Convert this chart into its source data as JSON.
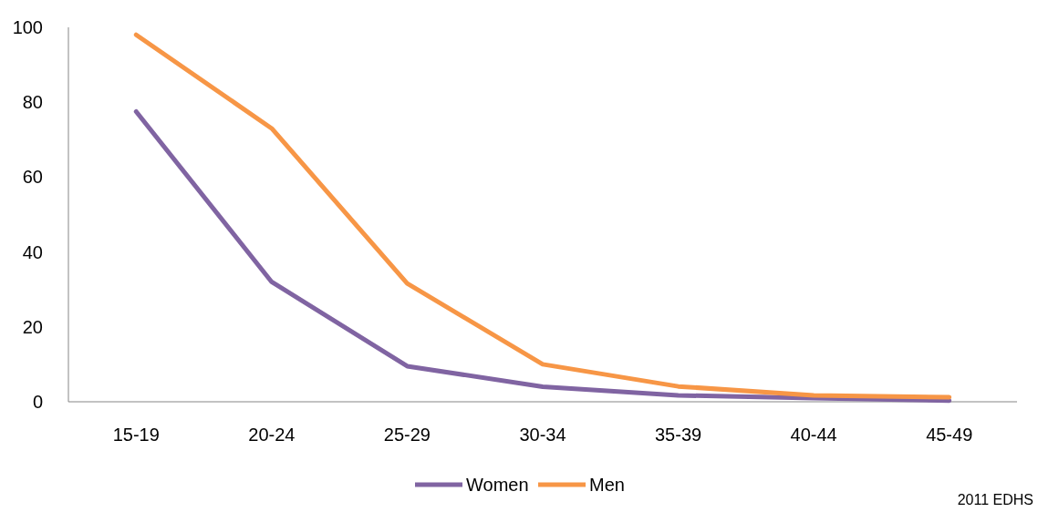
{
  "chart_data": {
    "type": "line",
    "categories": [
      "15-19",
      "20-24",
      "25-29",
      "30-34",
      "35-39",
      "40-44",
      "45-49"
    ],
    "series": [
      {
        "name": "Women",
        "color": "#8064a2",
        "values": [
          77.5,
          32,
          9.5,
          4,
          1.7,
          1,
          0.3
        ]
      },
      {
        "name": "Men",
        "color": "#f79646",
        "values": [
          98,
          73,
          31.6,
          10,
          4.1,
          1.7,
          1.2
        ]
      }
    ],
    "ylim": [
      0,
      100
    ],
    "yticks": [
      0,
      20,
      40,
      60,
      80,
      100
    ],
    "legend": "bottom",
    "annotations": [
      "2011 EDHS"
    ]
  }
}
